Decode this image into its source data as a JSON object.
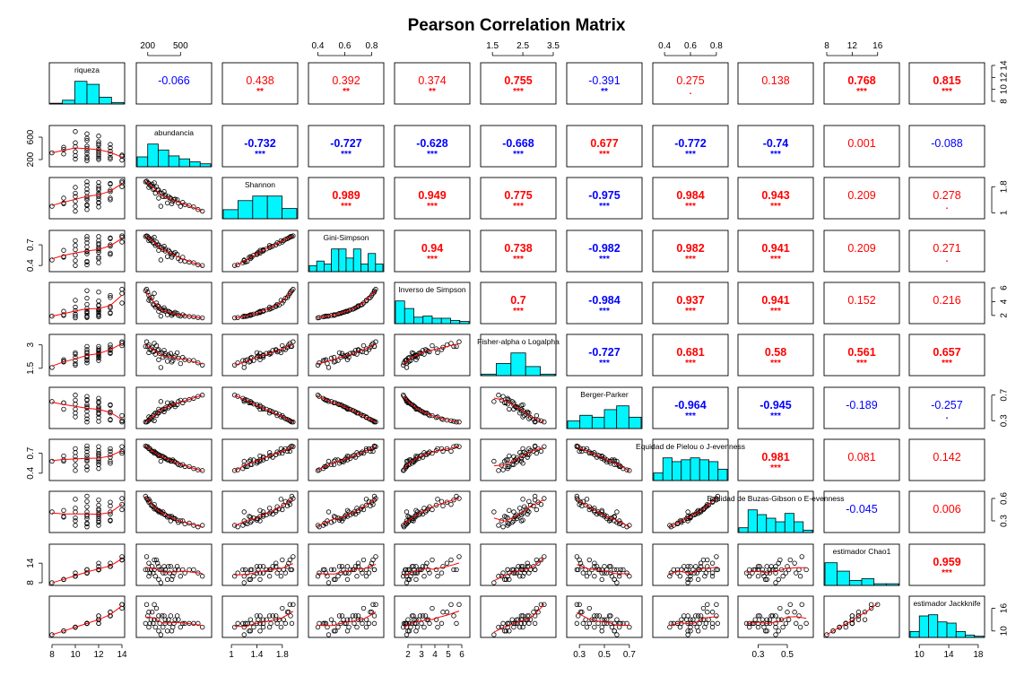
{
  "chart_data": {
    "type": "scatter",
    "title": "Pearson Correlation Matrix",
    "variables": [
      "riqueza",
      "abundancia",
      "Shannon",
      "Gini-Simpson",
      "Inverso de Simpson",
      "Fisher-alpha o Logalpha",
      "Berger-Parker",
      "Equidad de Pielou o J-evenness",
      "Equidad de Buzas-Gibson o E-evenness",
      "estimador Chao1",
      "estimador Jackknife"
    ],
    "ranges": [
      [
        8,
        14
      ],
      [
        120,
        760
      ],
      [
        0.9,
        2.0
      ],
      [
        0.35,
        0.87
      ],
      [
        1.2,
        6.4
      ],
      [
        1.2,
        3.5
      ],
      [
        0.22,
        0.78
      ],
      [
        0.33,
        0.87
      ],
      [
        0.18,
        0.66
      ],
      [
        8,
        19
      ],
      [
        9,
        18.5
      ]
    ],
    "axis_ticks": {
      "top": {
        "1": [
          200,
          500
        ],
        "3": [
          0.4,
          0.6,
          0.8
        ],
        "5": [
          1.5,
          2.5,
          3.5
        ],
        "7": [
          0.4,
          0.6,
          0.8
        ],
        "9": [
          8,
          12,
          16
        ]
      },
      "bottom": {
        "0": [
          8,
          10,
          12,
          14
        ],
        "2": [
          1.0,
          1.4,
          1.8
        ],
        "4": [
          2,
          3,
          4,
          5,
          6
        ],
        "6": [
          0.3,
          0.5,
          0.7
        ],
        "8": [
          0.3,
          0.5
        ],
        "10": [
          10,
          14,
          18
        ]
      },
      "left": {
        "1": [
          200,
          600
        ],
        "3": [
          0.4,
          0.7
        ],
        "5": [
          1.5,
          3.0
        ],
        "7": [
          0.4,
          0.7
        ],
        "9": [
          8,
          14
        ]
      },
      "right": {
        "0": [
          8,
          10,
          12,
          14
        ],
        "2": [
          1.0,
          1.8
        ],
        "4": [
          2,
          4,
          6
        ],
        "6": [
          0.3,
          0.7
        ],
        "8": [
          0.3,
          0.6
        ],
        "10": [
          10,
          16
        ]
      }
    },
    "correlations": [
      {
        "row": 0,
        "col": 1,
        "r": "-0.066",
        "stars": ""
      },
      {
        "row": 0,
        "col": 2,
        "r": "0.438",
        "stars": "**"
      },
      {
        "row": 0,
        "col": 3,
        "r": "0.392",
        "stars": "**"
      },
      {
        "row": 0,
        "col": 4,
        "r": "0.374",
        "stars": "**"
      },
      {
        "row": 0,
        "col": 5,
        "r": "0.755",
        "stars": "***"
      },
      {
        "row": 0,
        "col": 6,
        "r": "-0.391",
        "stars": "**"
      },
      {
        "row": 0,
        "col": 7,
        "r": "0.275",
        "stars": "."
      },
      {
        "row": 0,
        "col": 8,
        "r": "0.138",
        "stars": ""
      },
      {
        "row": 0,
        "col": 9,
        "r": "0.768",
        "stars": "***"
      },
      {
        "row": 0,
        "col": 10,
        "r": "0.815",
        "stars": "***"
      },
      {
        "row": 1,
        "col": 2,
        "r": "-0.732",
        "stars": "***"
      },
      {
        "row": 1,
        "col": 3,
        "r": "-0.727",
        "stars": "***"
      },
      {
        "row": 1,
        "col": 4,
        "r": "-0.628",
        "stars": "***"
      },
      {
        "row": 1,
        "col": 5,
        "r": "-0.668",
        "stars": "***"
      },
      {
        "row": 1,
        "col": 6,
        "r": "0.677",
        "stars": "***"
      },
      {
        "row": 1,
        "col": 7,
        "r": "-0.772",
        "stars": "***"
      },
      {
        "row": 1,
        "col": 8,
        "r": "-0.74",
        "stars": "***"
      },
      {
        "row": 1,
        "col": 9,
        "r": "0.001",
        "stars": ""
      },
      {
        "row": 1,
        "col": 10,
        "r": "-0.088",
        "stars": ""
      },
      {
        "row": 2,
        "col": 3,
        "r": "0.989",
        "stars": "***"
      },
      {
        "row": 2,
        "col": 4,
        "r": "0.949",
        "stars": "***"
      },
      {
        "row": 2,
        "col": 5,
        "r": "0.775",
        "stars": "***"
      },
      {
        "row": 2,
        "col": 6,
        "r": "-0.975",
        "stars": "***"
      },
      {
        "row": 2,
        "col": 7,
        "r": "0.984",
        "stars": "***"
      },
      {
        "row": 2,
        "col": 8,
        "r": "0.943",
        "stars": "***"
      },
      {
        "row": 2,
        "col": 9,
        "r": "0.209",
        "stars": ""
      },
      {
        "row": 2,
        "col": 10,
        "r": "0.278",
        "stars": "."
      },
      {
        "row": 3,
        "col": 4,
        "r": "0.94",
        "stars": "***"
      },
      {
        "row": 3,
        "col": 5,
        "r": "0.738",
        "stars": "***"
      },
      {
        "row": 3,
        "col": 6,
        "r": "-0.982",
        "stars": "***"
      },
      {
        "row": 3,
        "col": 7,
        "r": "0.982",
        "stars": "***"
      },
      {
        "row": 3,
        "col": 8,
        "r": "0.941",
        "stars": "***"
      },
      {
        "row": 3,
        "col": 9,
        "r": "0.209",
        "stars": ""
      },
      {
        "row": 3,
        "col": 10,
        "r": "0.271",
        "stars": "."
      },
      {
        "row": 4,
        "col": 5,
        "r": "0.7",
        "stars": "***"
      },
      {
        "row": 4,
        "col": 6,
        "r": "-0.984",
        "stars": "***"
      },
      {
        "row": 4,
        "col": 7,
        "r": "0.937",
        "stars": "***"
      },
      {
        "row": 4,
        "col": 8,
        "r": "0.941",
        "stars": "***"
      },
      {
        "row": 4,
        "col": 9,
        "r": "0.152",
        "stars": ""
      },
      {
        "row": 4,
        "col": 10,
        "r": "0.216",
        "stars": ""
      },
      {
        "row": 5,
        "col": 6,
        "r": "-0.727",
        "stars": "***"
      },
      {
        "row": 5,
        "col": 7,
        "r": "0.681",
        "stars": "***"
      },
      {
        "row": 5,
        "col": 8,
        "r": "0.58",
        "stars": "***"
      },
      {
        "row": 5,
        "col": 9,
        "r": "0.561",
        "stars": "***"
      },
      {
        "row": 5,
        "col": 10,
        "r": "0.657",
        "stars": "***"
      },
      {
        "row": 6,
        "col": 7,
        "r": "-0.964",
        "stars": "***"
      },
      {
        "row": 6,
        "col": 8,
        "r": "-0.945",
        "stars": "***"
      },
      {
        "row": 6,
        "col": 9,
        "r": "-0.189",
        "stars": ""
      },
      {
        "row": 6,
        "col": 10,
        "r": "-0.257",
        "stars": "."
      },
      {
        "row": 7,
        "col": 8,
        "r": "0.981",
        "stars": "***"
      },
      {
        "row": 7,
        "col": 9,
        "r": "0.081",
        "stars": ""
      },
      {
        "row": 7,
        "col": 10,
        "r": "0.142",
        "stars": ""
      },
      {
        "row": 8,
        "col": 9,
        "r": "-0.045",
        "stars": ""
      },
      {
        "row": 8,
        "col": 10,
        "r": "0.006",
        "stars": ""
      },
      {
        "row": 9,
        "col": 10,
        "r": "0.959",
        "stars": "***"
      }
    ],
    "histograms": [
      [
        1,
        5,
        30,
        26,
        9,
        2
      ],
      [
        10,
        23,
        17,
        11,
        8,
        5,
        3
      ],
      [
        8,
        16,
        20,
        20,
        9
      ],
      [
        4,
        7,
        5,
        15,
        15,
        9,
        15,
        5,
        12,
        5
      ],
      [
        21,
        14,
        6,
        7,
        5,
        5,
        3,
        2
      ],
      [
        2,
        16,
        30,
        12,
        2
      ],
      [
        4,
        7,
        6,
        10,
        12,
        6
      ],
      [
        4,
        12,
        10,
        11,
        12,
        11,
        10,
        6
      ],
      [
        4,
        19,
        15,
        12,
        9,
        16,
        9,
        2
      ],
      [
        27,
        17,
        6,
        8,
        2,
        2
      ],
      [
        5,
        18,
        19,
        13,
        12,
        5,
        2,
        1
      ]
    ],
    "points": [
      [
        11,
        540,
        1.25,
        0.46,
        1.9,
        2.05,
        0.62,
        0.5,
        0.26,
        11,
        12
      ],
      [
        12,
        620,
        1.18,
        0.44,
        1.8,
        2.0,
        0.65,
        0.47,
        0.24,
        12,
        12
      ],
      [
        10,
        700,
        1.05,
        0.4,
        1.65,
        1.7,
        0.7,
        0.44,
        0.24,
        10,
        11
      ],
      [
        11,
        660,
        1.1,
        0.41,
        1.7,
        1.85,
        0.68,
        0.45,
        0.22,
        11,
        12
      ],
      [
        12,
        480,
        1.3,
        0.5,
        2.0,
        2.15,
        0.6,
        0.53,
        0.28,
        12,
        13
      ],
      [
        13,
        410,
        1.45,
        0.58,
        2.4,
        2.45,
        0.54,
        0.58,
        0.3,
        13,
        14
      ],
      [
        9,
        380,
        1.3,
        0.53,
        2.1,
        1.95,
        0.58,
        0.6,
        0.35,
        9,
        10
      ],
      [
        10,
        430,
        1.35,
        0.55,
        2.2,
        2.0,
        0.56,
        0.6,
        0.34,
        10,
        11
      ],
      [
        11,
        360,
        1.5,
        0.61,
        2.6,
        2.3,
        0.5,
        0.63,
        0.38,
        11,
        12
      ],
      [
        12,
        330,
        1.6,
        0.66,
        2.9,
        2.5,
        0.46,
        0.66,
        0.4,
        12,
        14
      ],
      [
        13,
        300,
        1.7,
        0.7,
        3.3,
        2.7,
        0.42,
        0.68,
        0.42,
        13,
        14
      ],
      [
        14,
        280,
        1.8,
        0.74,
        3.8,
        2.95,
        0.38,
        0.7,
        0.45,
        15,
        16
      ],
      [
        11,
        250,
        1.72,
        0.73,
        3.6,
        2.55,
        0.38,
        0.72,
        0.49,
        11,
        12
      ],
      [
        12,
        230,
        1.82,
        0.76,
        4.1,
        2.75,
        0.35,
        0.74,
        0.51,
        12,
        13
      ],
      [
        10,
        270,
        1.6,
        0.69,
        3.2,
        2.4,
        0.42,
        0.71,
        0.47,
        10,
        11
      ],
      [
        13,
        210,
        1.9,
        0.8,
        4.9,
        3.0,
        0.31,
        0.77,
        0.55,
        14,
        15
      ],
      [
        14,
        190,
        1.97,
        0.83,
        5.8,
        3.2,
        0.28,
        0.8,
        0.6,
        16,
        17
      ],
      [
        12,
        200,
        1.93,
        0.82,
        5.4,
        2.9,
        0.29,
        0.8,
        0.58,
        12,
        14
      ],
      [
        11,
        440,
        1.4,
        0.57,
        2.3,
        2.2,
        0.55,
        0.58,
        0.33,
        11,
        12
      ],
      [
        12,
        390,
        1.5,
        0.62,
        2.6,
        2.35,
        0.5,
        0.6,
        0.36,
        13,
        13
      ],
      [
        10,
        500,
        1.2,
        0.47,
        1.9,
        1.8,
        0.62,
        0.52,
        0.3,
        10,
        11
      ],
      [
        11,
        310,
        1.62,
        0.67,
        3.0,
        2.45,
        0.45,
        0.67,
        0.42,
        12,
        12
      ],
      [
        12,
        260,
        1.75,
        0.72,
        3.5,
        2.6,
        0.4,
        0.7,
        0.46,
        12,
        13
      ],
      [
        9,
        300,
        1.45,
        0.62,
        2.6,
        2.05,
        0.48,
        0.66,
        0.44,
        9,
        10
      ],
      [
        8,
        320,
        1.2,
        0.48,
        1.9,
        1.55,
        0.6,
        0.58,
        0.42,
        8,
        9
      ],
      [
        13,
        350,
        1.65,
        0.68,
        3.1,
        2.65,
        0.44,
        0.64,
        0.39,
        13,
        14
      ],
      [
        11,
        580,
        1.22,
        0.45,
        1.85,
        2.0,
        0.63,
        0.5,
        0.27,
        12,
        12
      ],
      [
        12,
        450,
        1.42,
        0.59,
        2.45,
        2.3,
        0.52,
        0.57,
        0.33,
        12,
        13
      ],
      [
        10,
        340,
        1.5,
        0.63,
        2.7,
        2.2,
        0.48,
        0.65,
        0.42,
        11,
        11
      ],
      [
        11,
        220,
        1.85,
        0.78,
        4.5,
        2.7,
        0.33,
        0.77,
        0.56,
        11,
        12
      ],
      [
        13,
        240,
        1.88,
        0.79,
        4.6,
        2.85,
        0.32,
        0.73,
        0.5,
        13,
        15
      ],
      [
        12,
        290,
        1.7,
        0.7,
        3.4,
        2.65,
        0.42,
        0.68,
        0.44,
        14,
        13
      ],
      [
        10,
        210,
        1.78,
        0.76,
        4.2,
        2.5,
        0.36,
        0.77,
        0.59,
        10,
        11
      ],
      [
        11,
        400,
        1.45,
        0.6,
        2.5,
        2.25,
        0.52,
        0.6,
        0.36,
        11,
        12
      ],
      [
        12,
        520,
        1.32,
        0.52,
        2.1,
        2.2,
        0.58,
        0.53,
        0.3,
        12,
        12
      ],
      [
        14,
        260,
        1.92,
        0.81,
        5.2,
        3.1,
        0.3,
        0.73,
        0.52,
        15,
        17
      ],
      [
        9,
        420,
        1.28,
        0.52,
        2.0,
        1.9,
        0.58,
        0.58,
        0.36,
        9,
        10
      ],
      [
        11,
        180,
        1.95,
        0.82,
        5.6,
        2.9,
        0.28,
        0.81,
        0.63,
        12,
        12
      ],
      [
        12,
        360,
        1.55,
        0.64,
        2.8,
        2.45,
        0.48,
        0.62,
        0.38,
        12,
        13
      ],
      [
        13,
        470,
        1.4,
        0.56,
        2.3,
        2.5,
        0.55,
        0.55,
        0.31,
        13,
        14
      ]
    ]
  }
}
